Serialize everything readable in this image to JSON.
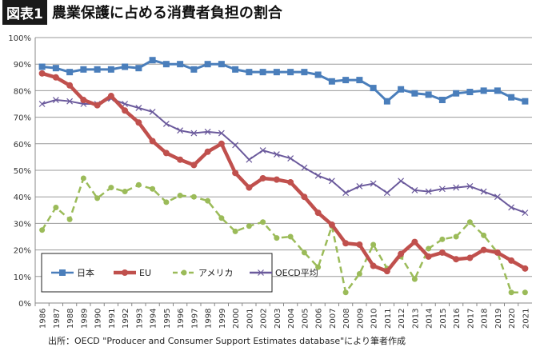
{
  "header": {
    "badge": "図表1",
    "title": "農業保護に占める消費者負担の割合"
  },
  "source": "出所：OECD \"Producer and Consumer Support Estimates database\"により筆者作成",
  "chart_data": {
    "type": "line",
    "title": "",
    "xlabel": "",
    "ylabel": "",
    "ylim": [
      0,
      100
    ],
    "yticks": [
      "0%",
      "10%",
      "20%",
      "30%",
      "40%",
      "50%",
      "60%",
      "70%",
      "80%",
      "90%",
      "100%"
    ],
    "grid": true,
    "legend_placement": "lower-left",
    "categories": [
      "1986",
      "1987",
      "1988",
      "1989",
      "1990",
      "1991",
      "1992",
      "1993",
      "1994",
      "1995",
      "1996",
      "1997",
      "1998",
      "1999",
      "2000",
      "2001",
      "2002",
      "2003",
      "2004",
      "2005",
      "2006",
      "2007",
      "2008",
      "2009",
      "2010",
      "2011",
      "2012",
      "2013",
      "2014",
      "2015",
      "2016",
      "2017",
      "2018",
      "2019",
      "2020",
      "2021"
    ],
    "series": [
      {
        "name": "日本",
        "color": "#4a7ebb",
        "marker": "square",
        "dash": false,
        "values": [
          89,
          88.5,
          87,
          88,
          88,
          88,
          89,
          88.5,
          91.5,
          90,
          90,
          88,
          90,
          90,
          88,
          87,
          87,
          87,
          87,
          87,
          86,
          83.5,
          84,
          84,
          81,
          76,
          80.5,
          79,
          78.5,
          76.5,
          79,
          79.5,
          80,
          80,
          77.5,
          76
        ]
      },
      {
        "name": "EU",
        "color": "#c0504d",
        "marker": "circle",
        "dash": false,
        "values": [
          86.5,
          85,
          82,
          76.5,
          74.5,
          78,
          72.5,
          68,
          61,
          56.5,
          54,
          52,
          57,
          60,
          49,
          43.5,
          47,
          46.5,
          45.5,
          40,
          34,
          29.5,
          22.5,
          22,
          14,
          12,
          18.5,
          23,
          17.5,
          19,
          16.5,
          17,
          20,
          19,
          16,
          13
        ]
      },
      {
        "name": "アメリカ",
        "color": "#9bbb59",
        "marker": "circle",
        "dash": true,
        "values": [
          27.5,
          36,
          31.5,
          47,
          39.5,
          43.5,
          42,
          44.5,
          43,
          38,
          40.5,
          40,
          38.5,
          32,
          27,
          29,
          30.5,
          24.5,
          25,
          19,
          13.5,
          29,
          4,
          11,
          22,
          13,
          17.5,
          9,
          20.5,
          24,
          25,
          30.5,
          25.5,
          19,
          4,
          4
        ]
      },
      {
        "name": "OECD平均",
        "color": "#6b5a9c",
        "marker": "x",
        "dash": false,
        "values": [
          75,
          76.5,
          76,
          75,
          75,
          77,
          75,
          73.5,
          72,
          67.5,
          65,
          64,
          64.5,
          64,
          59.5,
          54,
          57.5,
          56,
          54.5,
          51,
          48,
          46,
          41.5,
          44,
          45,
          41.5,
          46,
          42.5,
          42,
          43,
          43.5,
          44,
          42,
          40,
          36,
          34
        ]
      }
    ]
  }
}
